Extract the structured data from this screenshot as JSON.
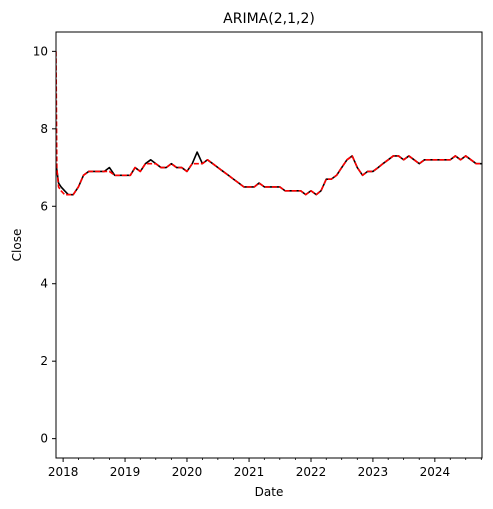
{
  "chart_data": {
    "type": "line",
    "title": "ARIMA(2,1,2)",
    "xlabel": "Date",
    "ylabel": "Close",
    "xlim": [
      "2017-11-20",
      "2024-10-05"
    ],
    "ylim": [
      -0.5,
      10.5
    ],
    "x_ticks": [
      "2018",
      "2019",
      "2020",
      "2021",
      "2022",
      "2023",
      "2024"
    ],
    "y_ticks": [
      0,
      2,
      4,
      6,
      8,
      10
    ],
    "grid": false,
    "legend": "none",
    "series": [
      {
        "color": "#000000",
        "style": "solid",
        "x": [
          "2017-11-20",
          "2017-12-05",
          "2017-12-20",
          "2018-01-10",
          "2018-02-01",
          "2018-03-01",
          "2018-04-01",
          "2018-05-01",
          "2018-06-01",
          "2018-07-01",
          "2018-08-01",
          "2018-09-01",
          "2018-10-01",
          "2018-11-01",
          "2018-12-01",
          "2019-01-01",
          "2019-02-01",
          "2019-03-01",
          "2019-04-01",
          "2019-05-01",
          "2019-06-01",
          "2019-07-01",
          "2019-08-01",
          "2019-09-01",
          "2019-10-01",
          "2019-11-01",
          "2019-12-01",
          "2020-01-01",
          "2020-02-01",
          "2020-03-01",
          "2020-04-01",
          "2020-05-01",
          "2020-06-01",
          "2020-07-01",
          "2020-08-01",
          "2020-09-01",
          "2020-10-01",
          "2020-11-01",
          "2020-12-01",
          "2021-01-01",
          "2021-02-01",
          "2021-03-01",
          "2021-04-01",
          "2021-05-01",
          "2021-06-01",
          "2021-07-01",
          "2021-08-01",
          "2021-09-01",
          "2021-10-01",
          "2021-11-01",
          "2021-12-01",
          "2022-01-01",
          "2022-02-01",
          "2022-03-01",
          "2022-04-01",
          "2022-05-01",
          "2022-06-01",
          "2022-07-01",
          "2022-08-01",
          "2022-09-01",
          "2022-10-01",
          "2022-11-01",
          "2022-12-01",
          "2023-01-01",
          "2023-02-01",
          "2023-03-01",
          "2023-04-01",
          "2023-05-01",
          "2023-06-01",
          "2023-07-01",
          "2023-08-01",
          "2023-09-01",
          "2023-10-01",
          "2023-11-01",
          "2023-12-01",
          "2024-01-01",
          "2024-02-01",
          "2024-03-01",
          "2024-04-01",
          "2024-05-01",
          "2024-06-01",
          "2024-07-01",
          "2024-08-01",
          "2024-09-01",
          "2024-10-05"
        ],
        "y": [
          7.1,
          6.6,
          6.5,
          6.4,
          6.3,
          6.3,
          6.5,
          6.8,
          6.9,
          6.9,
          6.9,
          6.9,
          7.0,
          6.8,
          6.8,
          6.8,
          6.8,
          7.0,
          6.9,
          7.1,
          7.2,
          7.1,
          7.0,
          7.0,
          7.1,
          7.0,
          7.0,
          6.9,
          7.1,
          7.4,
          7.1,
          7.2,
          7.1,
          7.0,
          6.9,
          6.8,
          6.7,
          6.6,
          6.5,
          6.5,
          6.5,
          6.6,
          6.5,
          6.5,
          6.5,
          6.5,
          6.4,
          6.4,
          6.4,
          6.4,
          6.3,
          6.4,
          6.3,
          6.4,
          6.7,
          6.7,
          6.8,
          7.0,
          7.2,
          7.3,
          7.0,
          6.8,
          6.9,
          6.9,
          7.0,
          7.1,
          7.2,
          7.3,
          7.3,
          7.2,
          7.3,
          7.2,
          7.1,
          7.2,
          7.2,
          7.2,
          7.2,
          7.2,
          7.2,
          7.3,
          7.2,
          7.3,
          7.2,
          7.1,
          7.1
        ]
      },
      {
        "color": "#ff0000",
        "style": "dashed",
        "x": [
          "2017-11-20",
          "2017-11-25",
          "2017-12-05",
          "2017-12-20",
          "2018-01-10",
          "2018-02-01",
          "2018-03-01",
          "2018-04-01",
          "2018-05-01",
          "2018-06-01",
          "2018-07-01",
          "2018-08-01",
          "2018-09-01",
          "2018-10-01",
          "2018-11-01",
          "2018-12-01",
          "2019-01-01",
          "2019-02-01",
          "2019-03-01",
          "2019-04-01",
          "2019-05-01",
          "2019-06-01",
          "2019-07-01",
          "2019-08-01",
          "2019-09-01",
          "2019-10-01",
          "2019-11-01",
          "2019-12-01",
          "2020-01-01",
          "2020-02-01",
          "2020-03-01",
          "2020-04-01",
          "2020-05-01",
          "2020-06-01",
          "2020-07-01",
          "2020-08-01",
          "2020-09-01",
          "2020-10-01",
          "2020-11-01",
          "2020-12-01",
          "2021-01-01",
          "2021-02-01",
          "2021-03-01",
          "2021-04-01",
          "2021-05-01",
          "2021-06-01",
          "2021-07-01",
          "2021-08-01",
          "2021-09-01",
          "2021-10-01",
          "2021-11-01",
          "2021-12-01",
          "2022-01-01",
          "2022-02-01",
          "2022-03-01",
          "2022-04-01",
          "2022-05-01",
          "2022-06-01",
          "2022-07-01",
          "2022-08-01",
          "2022-09-01",
          "2022-10-01",
          "2022-11-01",
          "2022-12-01",
          "2023-01-01",
          "2023-02-01",
          "2023-03-01",
          "2023-04-01",
          "2023-05-01",
          "2023-06-01",
          "2023-07-01",
          "2023-08-01",
          "2023-09-01",
          "2023-10-01",
          "2023-11-01",
          "2023-12-01",
          "2024-01-01",
          "2024-02-01",
          "2024-03-01",
          "2024-04-01",
          "2024-05-01",
          "2024-06-01",
          "2024-07-01",
          "2024-08-01",
          "2024-09-01",
          "2024-10-05"
        ],
        "y": [
          10.0,
          7.0,
          6.5,
          6.4,
          6.3,
          6.3,
          6.3,
          6.5,
          6.8,
          6.9,
          6.9,
          6.9,
          6.9,
          6.9,
          6.8,
          6.8,
          6.8,
          6.8,
          7.0,
          6.9,
          7.1,
          7.1,
          7.1,
          7.0,
          7.0,
          7.1,
          7.0,
          7.0,
          6.9,
          7.1,
          7.1,
          7.1,
          7.2,
          7.1,
          7.0,
          6.9,
          6.8,
          6.7,
          6.6,
          6.5,
          6.5,
          6.5,
          6.6,
          6.5,
          6.5,
          6.5,
          6.5,
          6.4,
          6.4,
          6.4,
          6.4,
          6.3,
          6.4,
          6.3,
          6.4,
          6.7,
          6.7,
          6.8,
          7.0,
          7.2,
          7.3,
          7.0,
          6.8,
          6.9,
          6.9,
          7.0,
          7.1,
          7.2,
          7.3,
          7.3,
          7.2,
          7.3,
          7.2,
          7.1,
          7.2,
          7.2,
          7.2,
          7.2,
          7.2,
          7.2,
          7.3,
          7.2,
          7.3,
          7.2,
          7.1,
          7.1
        ]
      }
    ]
  }
}
